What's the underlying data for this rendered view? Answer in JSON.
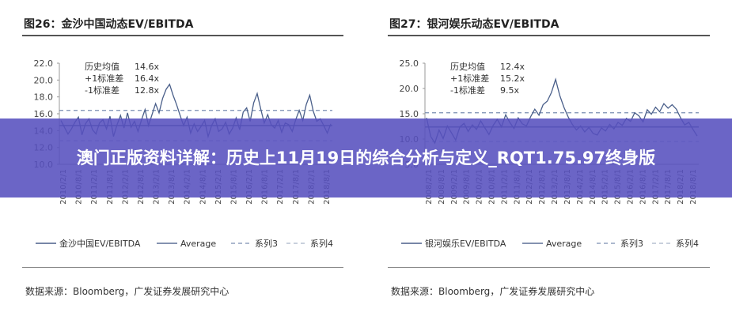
{
  "banner": {
    "title": "澳门正版资料详解：历史上11月19日的综合分析与定义_RQT1.75.97终身版"
  },
  "figures": [
    {
      "title": "图26：金沙中国动态EV/EBITDA",
      "source": "数据来源：Bloomberg，广发证券发展研究中心"
    },
    {
      "title": "图27：银河娱乐动态EV/EBITDA",
      "source": "数据来源：Bloomberg，广发证券发展研究中心"
    }
  ],
  "chart_data": [
    {
      "type": "line",
      "title": "图26：金沙中国动态EV/EBITDA",
      "ylim": [
        10.0,
        22.0
      ],
      "yticks": [
        "22.0",
        "20.0",
        "18.0",
        "16.0",
        "14.0",
        "12.0",
        "10.0"
      ],
      "x_labels": [
        "2010/2/1",
        "2010/8/1",
        "2011/2/1",
        "2011/8/1",
        "2012/2/1",
        "2012/8/1",
        "2013/2/1",
        "2013/8/1",
        "2014/2/1",
        "2014/8/1",
        "2015/2/1",
        "2015/8/1",
        "2016/2/1",
        "2016/8/1",
        "2017/2/1",
        "2017/8/1",
        "2018/2/1",
        "2018/8/1"
      ],
      "annotations": [
        {
          "label": "历史均值",
          "value": "14.6x"
        },
        {
          "label": "+1标准差",
          "value": "16.4x"
        },
        {
          "label": "-1标准差",
          "value": "12.8x"
        }
      ],
      "legend": [
        "金沙中国EV/EBITDA",
        "Average",
        "系列3",
        "系列4"
      ],
      "series": [
        {
          "name": "金沙中国EV/EBITDA",
          "color": "#4a5f8a",
          "values": [
            15.2,
            14.4,
            13.6,
            14.2,
            15.0,
            15.6,
            13.5,
            14.8,
            15.4,
            14.1,
            13.6,
            14.9,
            15.3,
            14.2,
            15.7,
            13.3,
            14.7,
            15.8,
            14.3,
            16.1,
            14.4,
            15.1,
            13.9,
            15.3,
            16.5,
            14.6,
            15.9,
            17.2,
            16.1,
            17.8,
            18.9,
            19.5,
            18.2,
            17.1,
            15.8,
            14.6,
            15.6,
            13.7,
            14.8,
            13.9,
            14.5,
            15.2,
            13.3,
            14.6,
            15.4,
            13.9,
            14.2,
            15.0,
            13.6,
            14.3,
            15.5,
            14.1,
            16.2,
            16.7,
            15.1,
            17.3,
            18.4,
            16.6,
            14.9,
            15.9,
            14.7,
            14.3,
            15.2,
            13.8,
            14.9,
            14.7,
            13.9,
            15.3,
            16.4,
            15.2,
            17.1,
            18.2,
            16.3,
            15.1,
            15.4,
            14.6,
            13.7,
            14.8
          ]
        },
        {
          "name": "Average",
          "color": "#5b6f95",
          "values": [
            14.6
          ]
        },
        {
          "name": "系列3",
          "color": "#7a8db0",
          "values": [
            16.4
          ]
        },
        {
          "name": "系列4",
          "color": "#a8b3c8",
          "values": [
            12.8
          ]
        }
      ]
    },
    {
      "type": "line",
      "title": "图27：银河娱乐动态EV/EBITDA",
      "ylim": [
        5.0,
        25.0
      ],
      "yticks": [
        "25.0",
        "20.0",
        "15.0",
        "10.0",
        "5.0"
      ],
      "x_labels": [
        "2008/2/1",
        "2008/8/1",
        "2009/2/1",
        "2009/8/1",
        "2010/2/1",
        "2010/8/1",
        "2011/2/1",
        "2011/8/1",
        "2012/2/1",
        "2012/8/1",
        "2013/2/1",
        "2013/8/1",
        "2014/2/1",
        "2014/8/1",
        "2015/2/1",
        "2015/8/1",
        "2016/2/1",
        "2016/8/1",
        "2017/2/1",
        "2017/8/1",
        "2018/2/1",
        "2018/8/1"
      ],
      "annotations": [
        {
          "label": "历史均值",
          "value": "12.4x"
        },
        {
          "label": "+1标准差",
          "value": "15.2x"
        },
        {
          "label": "-1标准差",
          "value": "9.5x"
        }
      ],
      "legend": [
        "银河娱乐EV/EBITDA",
        "Average",
        "系列3",
        "系列4"
      ],
      "series": [
        {
          "name": "银河娱乐EV/EBITDA",
          "color": "#4a5f8a",
          "values": [
            14.2,
            10.5,
            9.2,
            11.8,
            10.1,
            12.6,
            11.2,
            9.8,
            12.4,
            13.1,
            11.5,
            12.8,
            11.9,
            13.6,
            12.2,
            10.9,
            12.7,
            13.9,
            12.4,
            14.8,
            13.3,
            12.1,
            14.2,
            13.0,
            12.6,
            14.4,
            15.9,
            14.7,
            16.8,
            17.5,
            19.2,
            21.8,
            18.6,
            16.3,
            14.4,
            12.9,
            11.8,
            12.6,
            11.4,
            12.3,
            11.1,
            10.8,
            12.2,
            11.6,
            12.9,
            12.0,
            13.3,
            12.7,
            14.1,
            13.5,
            15.2,
            14.6,
            13.4,
            15.8,
            14.9,
            16.3,
            15.4,
            17.0,
            16.1,
            16.8,
            15.9,
            14.2,
            12.8,
            13.3,
            11.9,
            10.6
          ]
        },
        {
          "name": "Average",
          "color": "#5b6f95",
          "values": [
            12.4
          ]
        },
        {
          "name": "系列3",
          "color": "#7a8db0",
          "values": [
            15.2
          ]
        },
        {
          "name": "系列4",
          "color": "#a8b3c8",
          "values": [
            9.5
          ]
        }
      ]
    }
  ]
}
